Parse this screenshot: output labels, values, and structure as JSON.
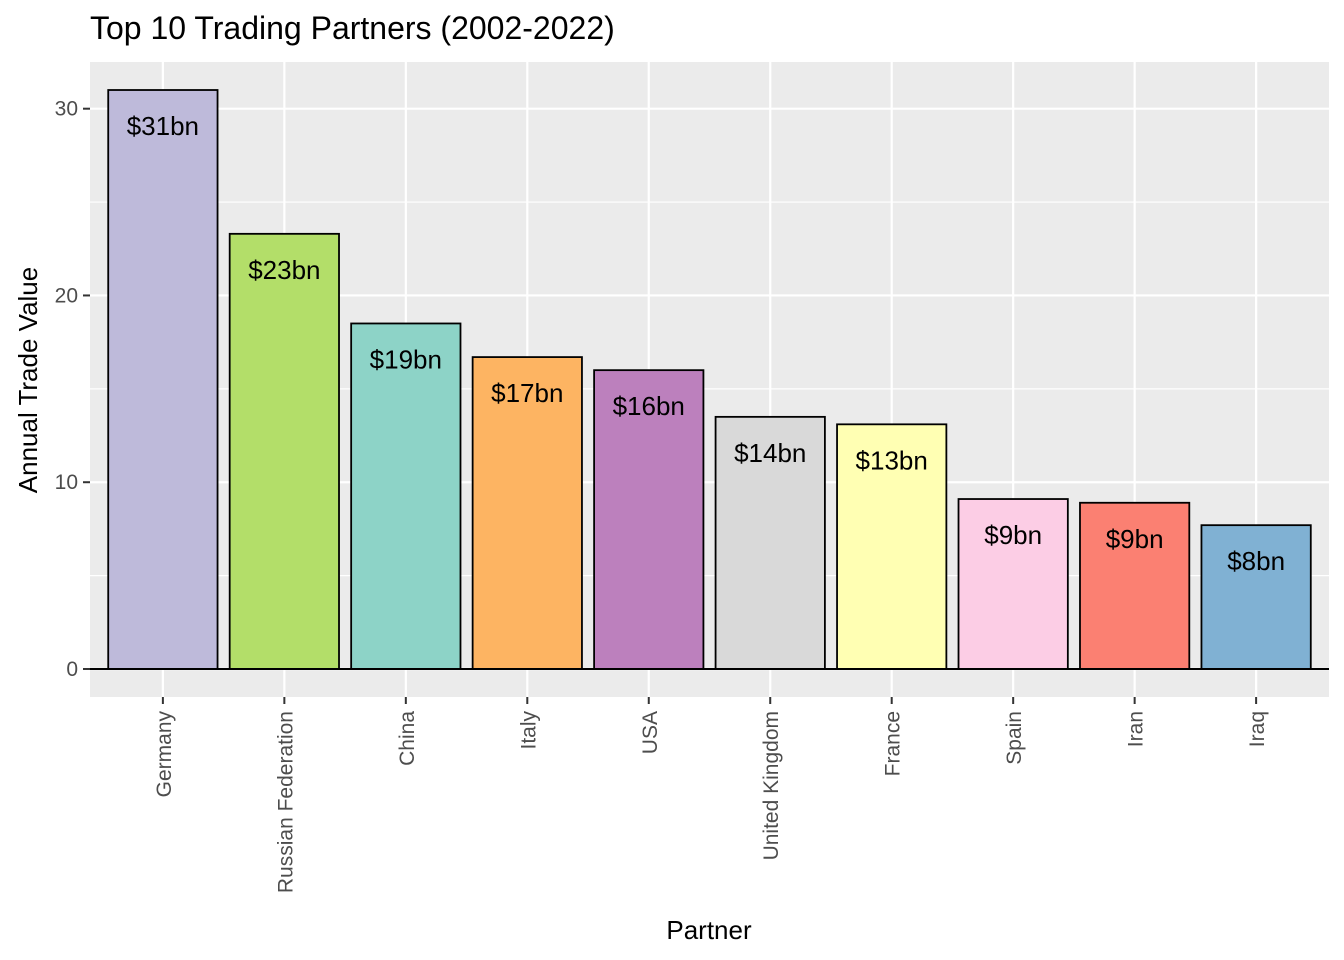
{
  "chart_data": {
    "type": "bar",
    "title": "Top 10 Trading Partners (2002-2022)",
    "xlabel": "Partner",
    "ylabel": "Annual Trade Value",
    "categories": [
      "Germany",
      "Russian Federation",
      "China",
      "Italy",
      "USA",
      "United Kingdom",
      "France",
      "Spain",
      "Iran",
      "Iraq"
    ],
    "values": [
      31.0,
      23.3,
      18.5,
      16.7,
      16.0,
      13.5,
      13.1,
      9.1,
      8.9,
      7.7
    ],
    "labels": [
      "$31bn",
      "$23bn",
      "$19bn",
      "$17bn",
      "$16bn",
      "$14bn",
      "$13bn",
      "$9bn",
      "$9bn",
      "$8bn"
    ],
    "colors": [
      "#BEBADA",
      "#B3DE69",
      "#8DD3C7",
      "#FDB462",
      "#BC80BD",
      "#D9D9D9",
      "#FFFFB3",
      "#FCCDE5",
      "#FB8072",
      "#80B1D3"
    ],
    "y_ticks": [
      0,
      10,
      20,
      30
    ],
    "ylim": [
      -1.5,
      32.5
    ],
    "grid": true,
    "legend": "none",
    "panel_background": "#EBEBEB",
    "grid_color": "#FFFFFF",
    "bar_outline": "#000000"
  }
}
